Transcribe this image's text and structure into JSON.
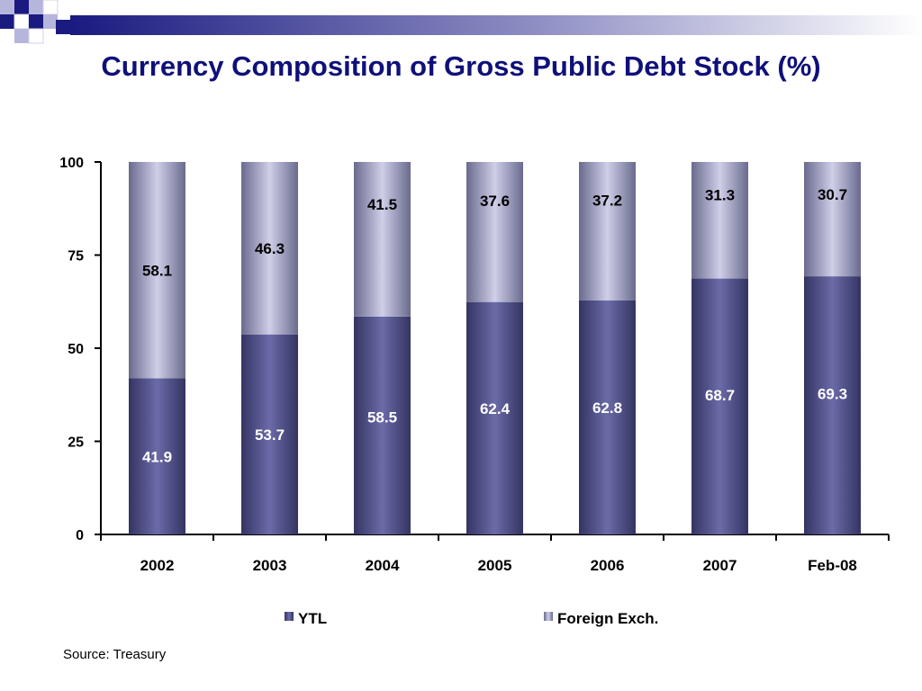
{
  "title": "Currency Composition of Gross Public Debt Stock (%)",
  "source": "Source: Treasury",
  "colors": {
    "title": "#10107a",
    "ytl_dark": "#343463",
    "ytl_light": "#6b6ba8",
    "fx_dark": "#6a6a8e",
    "fx_light": "#cfcfe9",
    "deco_dark": "#1a1a80",
    "deco_light": "#b6b6dc"
  },
  "chart_data": {
    "type": "bar",
    "stacked": true,
    "categories": [
      "2002",
      "2003",
      "2004",
      "2005",
      "2006",
      "2007",
      "Feb-08"
    ],
    "series": [
      {
        "name": "YTL",
        "values": [
          41.9,
          53.7,
          58.5,
          62.4,
          62.8,
          68.7,
          69.3
        ],
        "label_color": "#ffffff"
      },
      {
        "name": "Foreign Exch.",
        "values": [
          58.1,
          46.3,
          41.5,
          37.6,
          37.2,
          31.3,
          30.7
        ],
        "label_color": "#000000"
      }
    ],
    "y_ticks": [
      0,
      25,
      50,
      75,
      100
    ],
    "ylim": [
      0,
      100
    ],
    "grid": false,
    "legend_position": "bottom"
  }
}
